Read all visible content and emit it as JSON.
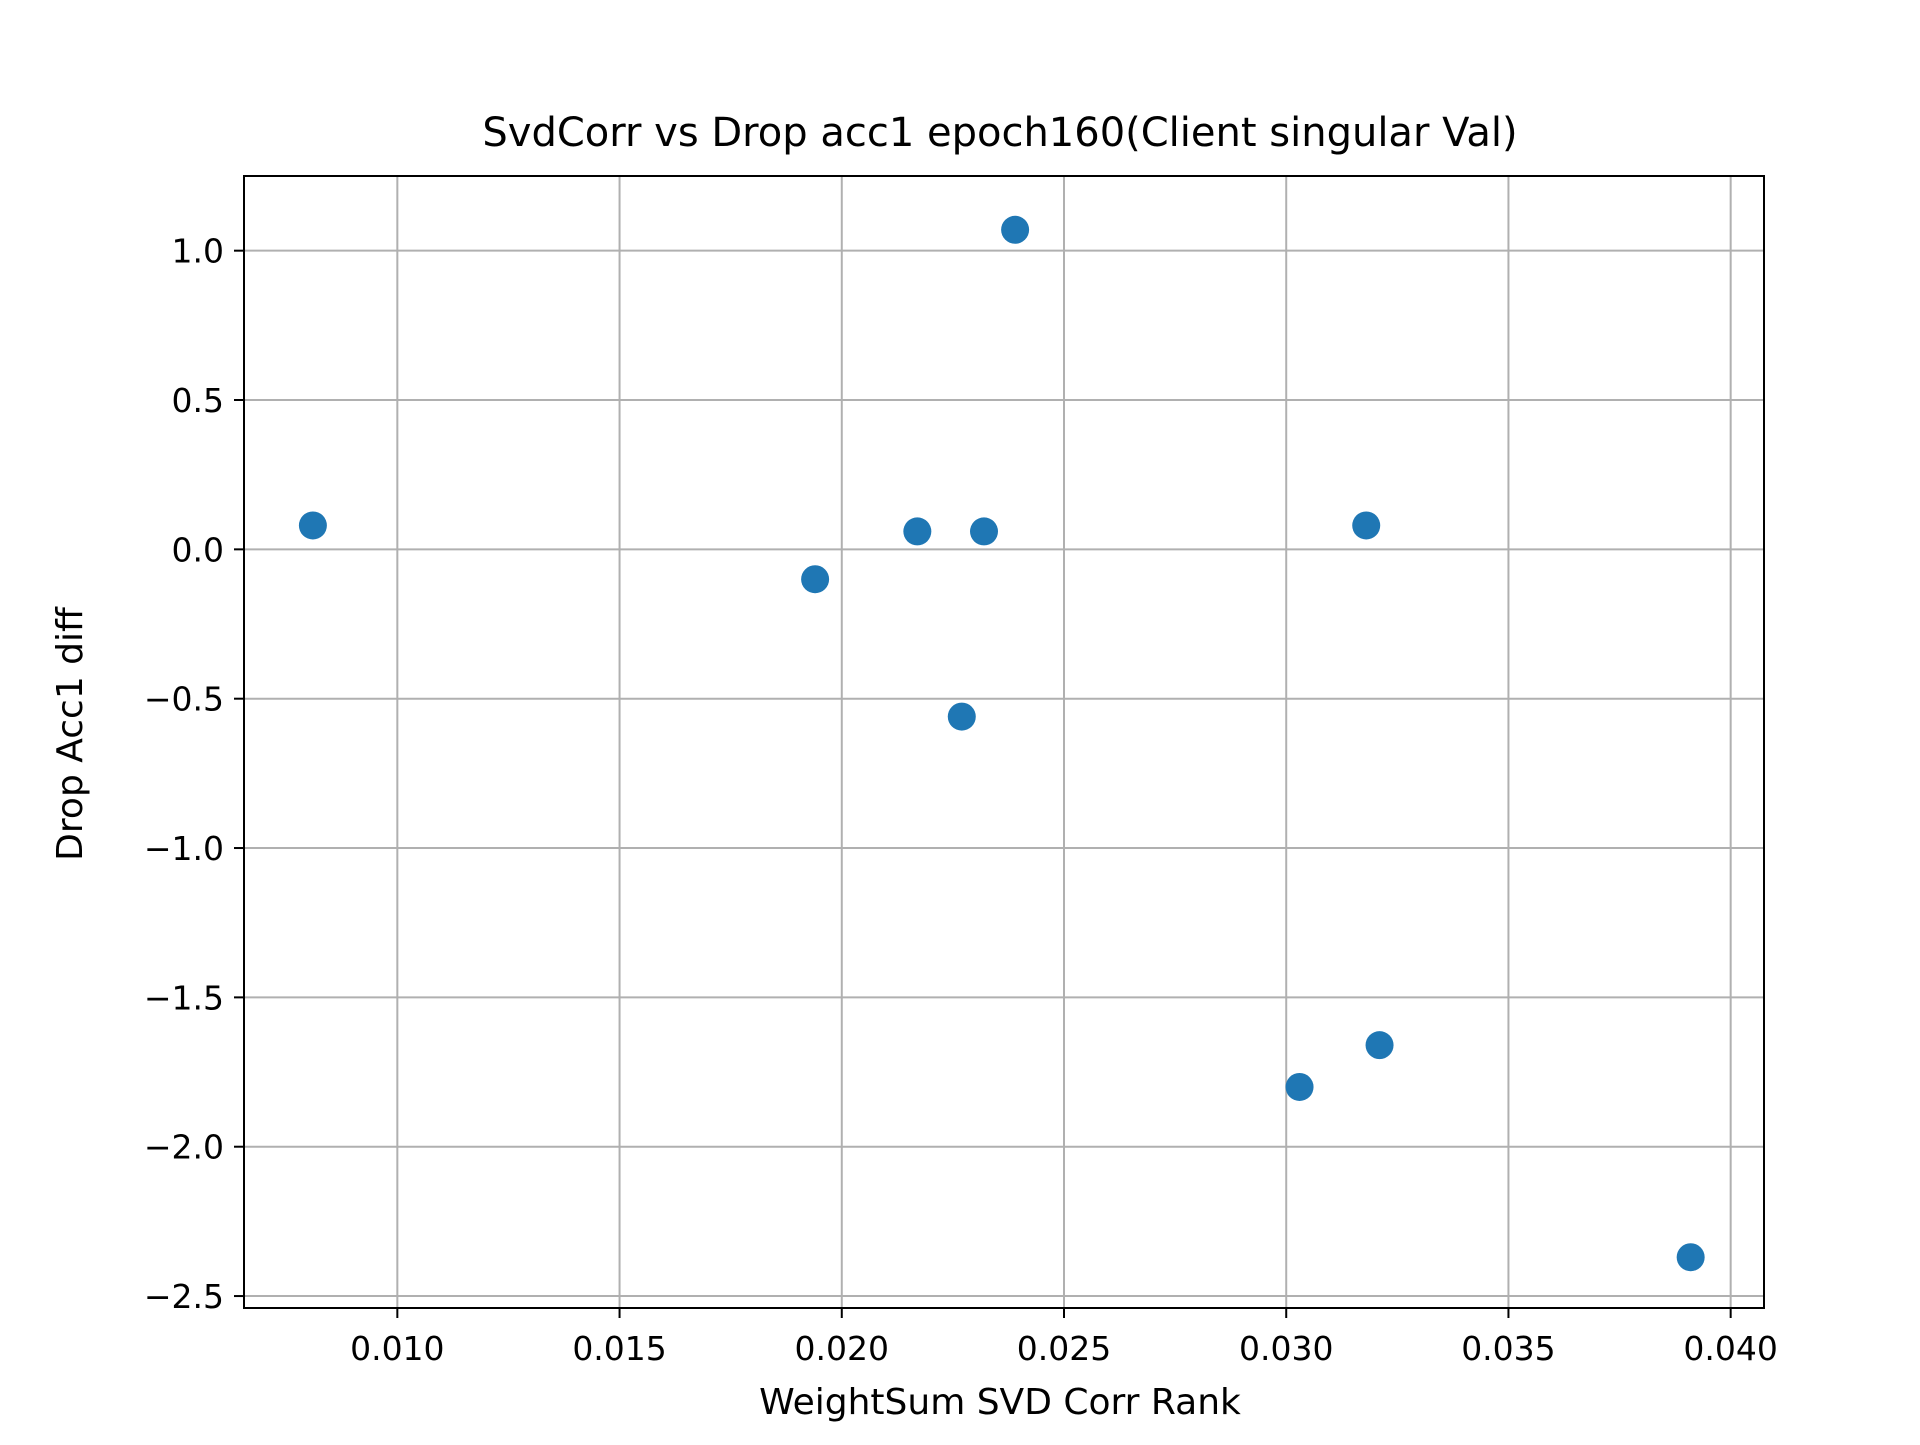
{
  "chart_data": {
    "type": "scatter",
    "title": "SvdCorr vs Drop acc1 epoch160(Client singular Val)",
    "xlabel": "WeightSum SVD Corr Rank",
    "ylabel": "Drop Acc1 diff",
    "xlim": [
      0.00655,
      0.04075
    ],
    "ylim": [
      -2.54,
      1.25
    ],
    "x_ticks": [
      0.01,
      0.015,
      0.02,
      0.025,
      0.03,
      0.035,
      0.04
    ],
    "x_tick_labels": [
      "0.010",
      "0.015",
      "0.020",
      "0.025",
      "0.030",
      "0.035",
      "0.040"
    ],
    "y_ticks": [
      1.0,
      0.5,
      0.0,
      -0.5,
      -1.0,
      -1.5,
      -2.0,
      -2.5
    ],
    "y_tick_labels": [
      "1.0",
      "0.5",
      "0.0",
      "−0.5",
      "−1.0",
      "−1.5",
      "−2.0",
      "−2.5"
    ],
    "grid": true,
    "marker_color": "#1f77b4",
    "points": [
      {
        "x": 0.0081,
        "y": 0.08
      },
      {
        "x": 0.0194,
        "y": -0.1
      },
      {
        "x": 0.0217,
        "y": 0.06
      },
      {
        "x": 0.0227,
        "y": -0.56
      },
      {
        "x": 0.0232,
        "y": 0.06
      },
      {
        "x": 0.0239,
        "y": 1.07
      },
      {
        "x": 0.0303,
        "y": -1.8
      },
      {
        "x": 0.0318,
        "y": 0.08
      },
      {
        "x": 0.0321,
        "y": -1.66
      },
      {
        "x": 0.0391,
        "y": -2.37
      }
    ]
  }
}
